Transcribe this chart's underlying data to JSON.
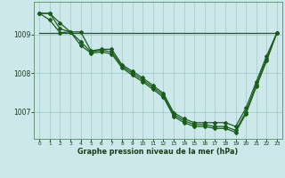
{
  "title": "Graphe pression niveau de la mer (hPa)",
  "bg_color": "#cce8ea",
  "grid_color": "#aacccc",
  "line_color": "#1a5c1a",
  "xlim": [
    -0.5,
    23.5
  ],
  "ylim": [
    1006.3,
    1009.85
  ],
  "yticks": [
    1007,
    1008,
    1009
  ],
  "xticks": [
    0,
    1,
    2,
    3,
    4,
    5,
    6,
    7,
    8,
    9,
    10,
    11,
    12,
    13,
    14,
    15,
    16,
    17,
    18,
    19,
    20,
    21,
    22,
    23
  ],
  "series_flat": {
    "x": [
      0,
      3,
      4,
      5,
      6,
      7,
      8,
      9,
      10,
      11,
      12,
      13,
      14,
      19,
      20,
      21,
      22,
      23
    ],
    "y": [
      1009.05,
      1009.05,
      1009.05,
      1009.05,
      1009.05,
      1009.05,
      1009.05,
      1009.05,
      1009.05,
      1009.05,
      1009.05,
      1009.05,
      1009.05,
      1009.05,
      1009.05,
      1009.05,
      1009.05,
      1009.05
    ]
  },
  "series_main": {
    "x": [
      0,
      1,
      2,
      3,
      4,
      5,
      6,
      7,
      8,
      9,
      10,
      11,
      12,
      13,
      14,
      15,
      16,
      17,
      18,
      19,
      20,
      21,
      22,
      23
    ],
    "y": [
      1009.55,
      1009.55,
      1009.3,
      1009.07,
      1009.07,
      1008.58,
      1008.62,
      1008.62,
      1008.22,
      1008.05,
      1007.88,
      1007.68,
      1007.48,
      1006.98,
      1006.82,
      1006.72,
      1006.72,
      1006.72,
      1006.72,
      1006.62,
      1007.1,
      1007.78,
      1008.45,
      1009.05
    ]
  },
  "series_line2": {
    "x": [
      0,
      1,
      2,
      3,
      4,
      5,
      6,
      7,
      8,
      9,
      10,
      11,
      12,
      13,
      14,
      15,
      16,
      17,
      18,
      19,
      20,
      21,
      22,
      23
    ],
    "y": [
      1009.55,
      1009.55,
      1009.15,
      1009.07,
      1008.82,
      1008.55,
      1008.6,
      1008.55,
      1008.18,
      1008.0,
      1007.83,
      1007.63,
      1007.43,
      1006.93,
      1006.77,
      1006.67,
      1006.67,
      1006.62,
      1006.62,
      1006.52,
      1007.0,
      1007.7,
      1008.38,
      1009.05
    ]
  },
  "series_line3": {
    "x": [
      0,
      1,
      2,
      3,
      4,
      5,
      6,
      7,
      8,
      9,
      10,
      11,
      12,
      13,
      14,
      15,
      16,
      17,
      18,
      19,
      20,
      21,
      22,
      23
    ],
    "y": [
      1009.55,
      1009.38,
      1009.05,
      1009.07,
      1008.72,
      1008.52,
      1008.55,
      1008.5,
      1008.14,
      1007.95,
      1007.78,
      1007.58,
      1007.38,
      1006.88,
      1006.72,
      1006.62,
      1006.62,
      1006.57,
      1006.57,
      1006.47,
      1006.95,
      1007.65,
      1008.32,
      1009.05
    ]
  }
}
